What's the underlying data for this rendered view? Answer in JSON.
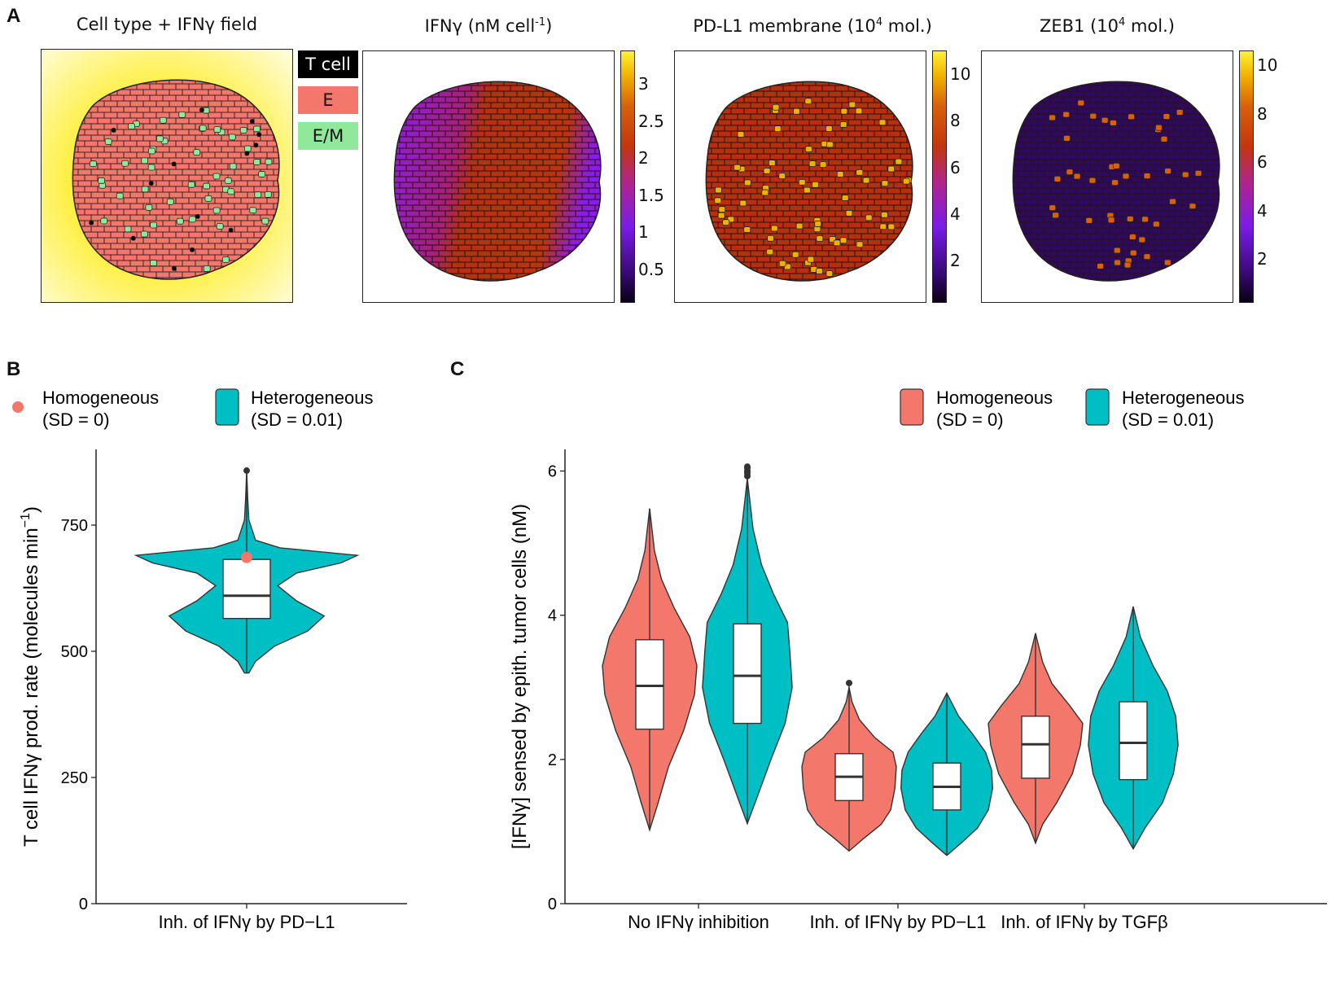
{
  "panels": {
    "A": "A",
    "B": "B",
    "C": "C"
  },
  "panel_a": {
    "maps": [
      {
        "title": "Cell type + IFNγ field"
      },
      {
        "title_pre": "IFNγ (nM cell",
        "title_sup": "-1",
        "title_post": ")",
        "colorbar_ticks": [
          "3",
          "2.5",
          "2",
          "1.5",
          "1",
          "0.5"
        ]
      },
      {
        "title_pre": "PD-L1 membrane (10",
        "title_sup": "4",
        "title_post": " mol.)",
        "colorbar_ticks": [
          "10",
          "8",
          "6",
          "4",
          "2"
        ]
      },
      {
        "title_pre": "ZEB1 (10",
        "title_sup": "4",
        "title_post": " mol.)",
        "colorbar_ticks": [
          "10",
          "8",
          "6",
          "4",
          "2"
        ]
      }
    ],
    "cell_types": [
      {
        "label": "T cell",
        "color": "#000000",
        "text_color": "#ffffff"
      },
      {
        "label": "E",
        "color": "#f4776b",
        "text_color": "#111111"
      },
      {
        "label": "E/M",
        "color": "#90e89a",
        "text_color": "#111111"
      }
    ]
  },
  "chart_data": [
    {
      "id": "B",
      "type": "violin",
      "ylabel": "T cell IFNγ prod. rate (molecules min",
      "ylabel_sup": "−1",
      "ylabel_end": ")",
      "ylim": [
        0,
        900
      ],
      "yticks": [
        0,
        250,
        500,
        750
      ],
      "categories": [
        "Inh. of IFNγ by PD−L1"
      ],
      "legend": [
        {
          "name": "Homogeneous",
          "sub": "(SD = 0)",
          "color": "#f4776b",
          "shape": "point"
        },
        {
          "name": "Heterogeneous",
          "sub": "(SD = 0.01)",
          "color": "#00bfc4",
          "shape": "violin"
        }
      ],
      "series": [
        {
          "name": "Heterogeneous",
          "color": "#00bfc4",
          "values": [
            {
              "category": "Inh. of IFNγ by PD−L1",
              "min": 457,
              "q1": 565,
              "median": 610,
              "q3": 682,
              "max": 715,
              "outliers": [
                858
              ],
              "density": [
                [
                  457,
                  0.02
                ],
                [
                  480,
                  0.08
                ],
                [
                  510,
                  0.25
                ],
                [
                  540,
                  0.55
                ],
                [
                  570,
                  0.7
                ],
                [
                  600,
                  0.45
                ],
                [
                  630,
                  0.28
                ],
                [
                  655,
                  0.45
                ],
                [
                  675,
                  0.85
                ],
                [
                  690,
                  1.0
                ],
                [
                  705,
                  0.3
                ],
                [
                  720,
                  0.08
                ],
                [
                  760,
                  0.02
                ],
                [
                  800,
                  0.01
                ],
                [
                  858,
                  0.0
                ]
              ]
            }
          ]
        },
        {
          "name": "Homogeneous",
          "color": "#f4776b",
          "values": [
            {
              "category": "Inh. of IFNγ by PD−L1",
              "y": 686
            }
          ]
        }
      ]
    },
    {
      "id": "C",
      "type": "violin",
      "ylabel": "[IFNγ] sensed by epith. tumor cells (nM)",
      "ylim": [
        0,
        6.3
      ],
      "yticks": [
        0,
        2,
        4,
        6
      ],
      "categories": [
        "No IFNγ inhibition",
        "Inh. of IFNγ by PD−L1",
        "Inh. of IFNγ by TGFβ"
      ],
      "legend": [
        {
          "name": "Homogeneous",
          "sub": "(SD = 0)",
          "color": "#f4776b"
        },
        {
          "name": "Heterogeneous",
          "sub": "(SD = 0.01)",
          "color": "#00bfc4"
        }
      ],
      "series": [
        {
          "name": "Homogeneous",
          "color": "#f4776b",
          "values": [
            {
              "category": "No IFNγ inhibition",
              "min": 1.02,
              "q1": 2.42,
              "median": 3.02,
              "q3": 3.66,
              "max": 5.48,
              "outliers": [],
              "density": [
                [
                  1.02,
                  0.0
                ],
                [
                  1.4,
                  0.18
                ],
                [
                  1.9,
                  0.4
                ],
                [
                  2.4,
                  0.72
                ],
                [
                  2.9,
                  0.95
                ],
                [
                  3.3,
                  1.0
                ],
                [
                  3.7,
                  0.85
                ],
                [
                  4.1,
                  0.52
                ],
                [
                  4.5,
                  0.25
                ],
                [
                  4.9,
                  0.1
                ],
                [
                  5.48,
                  0.0
                ]
              ]
            },
            {
              "category": "Inh. of IFNγ by PD−L1",
              "min": 0.73,
              "q1": 1.43,
              "median": 1.76,
              "q3": 2.08,
              "max": 2.68,
              "outliers": [
                3.06
              ],
              "density": [
                [
                  0.73,
                  0.0
                ],
                [
                  0.9,
                  0.3
                ],
                [
                  1.1,
                  0.68
                ],
                [
                  1.3,
                  0.88
                ],
                [
                  1.6,
                  0.97
                ],
                [
                  1.9,
                  1.0
                ],
                [
                  2.1,
                  0.93
                ],
                [
                  2.3,
                  0.55
                ],
                [
                  2.55,
                  0.22
                ],
                [
                  2.8,
                  0.06
                ],
                [
                  3.0,
                  0.0
                ]
              ]
            },
            {
              "category": "Inh. of IFNγ by TGFβ",
              "min": 0.84,
              "q1": 1.74,
              "median": 2.21,
              "q3": 2.6,
              "max": 3.75,
              "outliers": [],
              "density": [
                [
                  0.84,
                  0.0
                ],
                [
                  1.1,
                  0.15
                ],
                [
                  1.4,
                  0.45
                ],
                [
                  1.8,
                  0.78
                ],
                [
                  2.2,
                  0.95
                ],
                [
                  2.5,
                  1.0
                ],
                [
                  2.75,
                  0.72
                ],
                [
                  3.05,
                  0.35
                ],
                [
                  3.35,
                  0.15
                ],
                [
                  3.75,
                  0.0
                ]
              ]
            }
          ]
        },
        {
          "name": "Heterogeneous",
          "color": "#00bfc4",
          "values": [
            {
              "category": "No IFNγ inhibition",
              "min": 1.11,
              "q1": 2.5,
              "median": 3.16,
              "q3": 3.88,
              "max": 5.9,
              "outliers": [
                5.93,
                5.97,
                6.0,
                6.04,
                6.06
              ],
              "density": [
                [
                  1.11,
                  0.0
                ],
                [
                  1.5,
                  0.22
                ],
                [
                  2.0,
                  0.5
                ],
                [
                  2.5,
                  0.8
                ],
                [
                  3.0,
                  0.95
                ],
                [
                  3.5,
                  0.9
                ],
                [
                  3.9,
                  0.85
                ],
                [
                  4.3,
                  0.55
                ],
                [
                  4.7,
                  0.3
                ],
                [
                  5.2,
                  0.12
                ],
                [
                  5.9,
                  0.0
                ]
              ]
            },
            {
              "category": "Inh. of IFNγ by PD−L1",
              "min": 0.67,
              "q1": 1.3,
              "median": 1.62,
              "q3": 1.95,
              "max": 2.92,
              "outliers": [],
              "density": [
                [
                  0.67,
                  0.0
                ],
                [
                  0.85,
                  0.32
                ],
                [
                  1.05,
                  0.65
                ],
                [
                  1.3,
                  0.88
                ],
                [
                  1.6,
                  0.97
                ],
                [
                  1.85,
                  0.95
                ],
                [
                  2.1,
                  0.82
                ],
                [
                  2.35,
                  0.55
                ],
                [
                  2.6,
                  0.25
                ],
                [
                  2.92,
                  0.0
                ]
              ]
            },
            {
              "category": "Inh. of IFNγ by TGFβ",
              "min": 0.76,
              "q1": 1.72,
              "median": 2.23,
              "q3": 2.8,
              "max": 4.12,
              "outliers": [],
              "density": [
                [
                  0.76,
                  0.0
                ],
                [
                  1.05,
                  0.25
                ],
                [
                  1.4,
                  0.62
                ],
                [
                  1.8,
                  0.85
                ],
                [
                  2.2,
                  0.95
                ],
                [
                  2.6,
                  0.9
                ],
                [
                  2.95,
                  0.72
                ],
                [
                  3.3,
                  0.42
                ],
                [
                  3.7,
                  0.15
                ],
                [
                  4.12,
                  0.0
                ]
              ]
            }
          ]
        }
      ]
    }
  ]
}
